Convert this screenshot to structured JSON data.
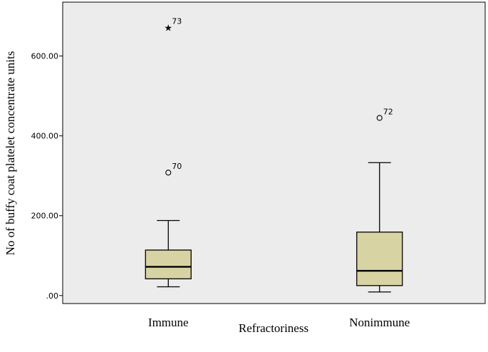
{
  "chart_data": {
    "type": "boxplot",
    "xlabel": "Refractoriness",
    "ylabel": "No of buffy coat platelet concentrate units",
    "ylim": [
      -20,
      735
    ],
    "yticks": [
      0,
      200,
      400,
      600
    ],
    "ytick_labels": [
      ".00",
      "200.00",
      "400.00",
      "600.00"
    ],
    "grid": false,
    "colors": {
      "plot_bg": "#ececec",
      "box_fill": "#d8d3a2",
      "stroke": "#000000"
    },
    "categories": [
      {
        "label": "Immune",
        "whisker_low": 22,
        "q1": 42,
        "median": 72,
        "q3": 114,
        "whisker_high": 188,
        "outliers": [
          {
            "value": 308,
            "label": "70",
            "marker": "circle"
          },
          {
            "value": 672,
            "label": "73",
            "marker": "star"
          }
        ]
      },
      {
        "label": "Nonimmune",
        "whisker_low": 9,
        "q1": 25,
        "median": 62,
        "q3": 159,
        "whisker_high": 333,
        "outliers": [
          {
            "value": 445,
            "label": "72",
            "marker": "circle"
          }
        ]
      }
    ]
  }
}
